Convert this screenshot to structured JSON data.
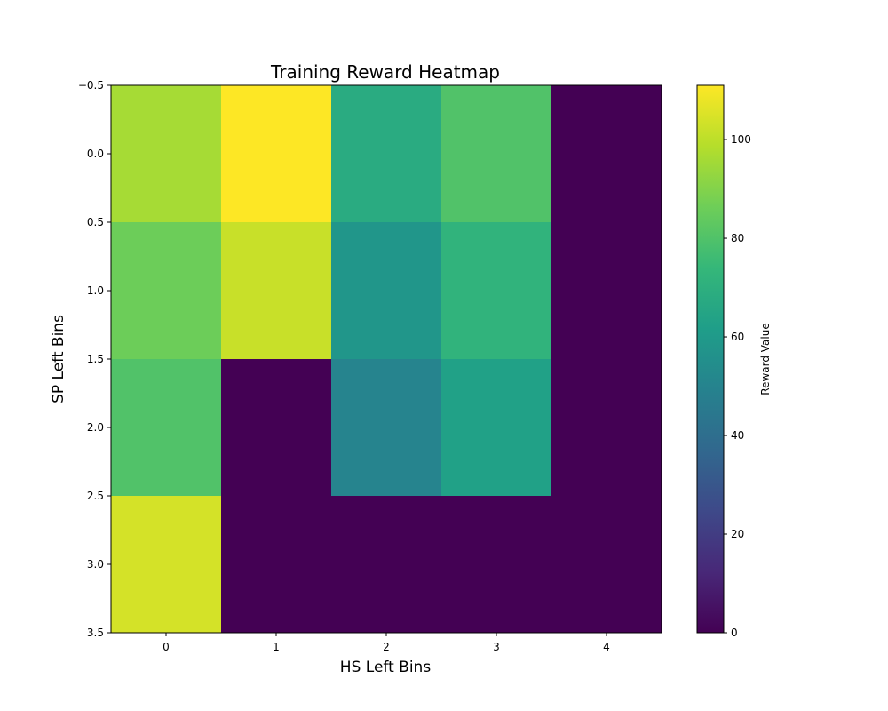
{
  "chart_data": {
    "type": "heatmap",
    "title": "Training Reward Heatmap",
    "xlabel": "HS Left Bins",
    "ylabel": "SP Left Bins",
    "x_ticks": [
      "0",
      "1",
      "2",
      "3",
      "4"
    ],
    "y_ticks": [
      "−0.5",
      "0.0",
      "0.5",
      "1.0",
      "1.5",
      "2.0",
      "2.5",
      "3.0",
      "3.5"
    ],
    "y_tick_values": [
      -0.5,
      0.0,
      0.5,
      1.0,
      1.5,
      2.0,
      2.5,
      3.0,
      3.5
    ],
    "ylim": [
      3.5,
      -0.5
    ],
    "xlim": [
      -0.5,
      4.5
    ],
    "rows": 4,
    "cols": 5,
    "values": [
      [
        96,
        111,
        68,
        80,
        0
      ],
      [
        86,
        102,
        58,
        72,
        0
      ],
      [
        80,
        0,
        50,
        63,
        0
      ],
      [
        104,
        0,
        0,
        0,
        0
      ]
    ],
    "colormap": "viridis",
    "colorbar": {
      "label": "Reward Value",
      "min": 0,
      "max": 111,
      "ticks": [
        "0",
        "20",
        "40",
        "60",
        "80",
        "100"
      ],
      "tick_values": [
        0,
        20,
        40,
        60,
        80,
        100
      ]
    }
  }
}
